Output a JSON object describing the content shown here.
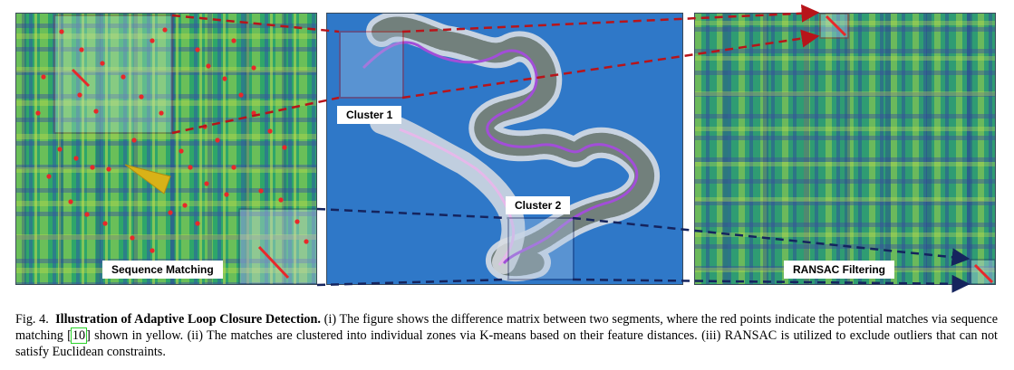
{
  "labels": {
    "sequence_matching": "Sequence Matching",
    "cluster_1": "Cluster 1",
    "cluster_2": "Cluster 2",
    "ransac_filtering": "RANSAC Filtering"
  },
  "caption": {
    "fig_label": "Fig. 4.",
    "title": "Illustration of Adaptive Loop Closure Detection.",
    "text_1": "(i) The figure shows the difference matrix between two segments, where the red points indicate the potential matches via sequence matching [",
    "citation": "10",
    "text_2": "] shown in yellow. (ii) The matches are clustered into individual zones via K-means based on their feature distances. (iii) RANSAC is utilized to exclude outliers that can not satisfy Euclidean constraints."
  },
  "colors": {
    "matrix_base": "#2ea66a",
    "match_red": "#e8282a",
    "arrow_red": "#b8141a",
    "arrow_navy": "#15245e",
    "water": "#2f78c8",
    "trajectory": "#a24ed8",
    "pointer_yellow": "#d8b218"
  }
}
